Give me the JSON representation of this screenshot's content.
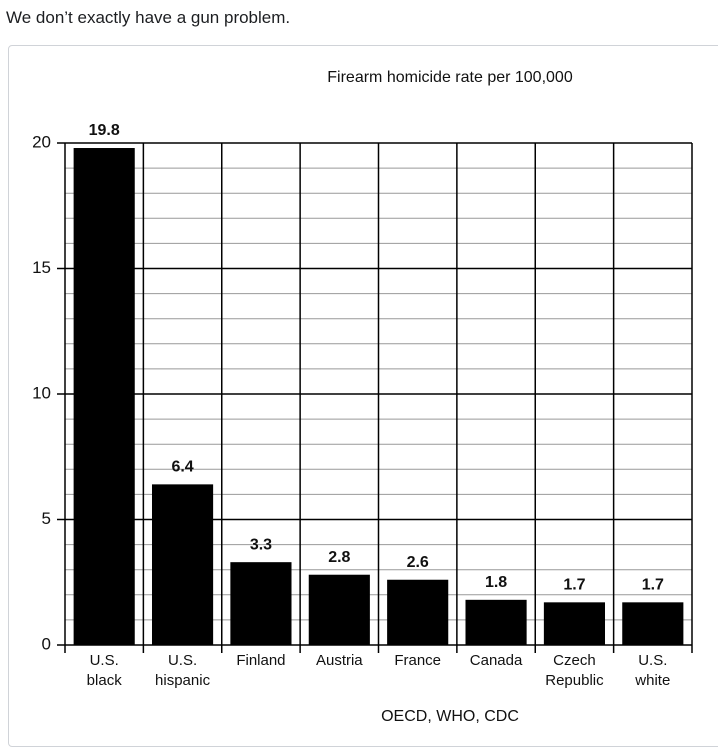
{
  "post": {
    "text": "We don’t exactly have a gun problem."
  },
  "chart_data": {
    "type": "bar",
    "title": "Firearm homicide rate per 100,000",
    "categories": [
      "U.S. black",
      "U.S. hispanic",
      "Finland",
      "Austria",
      "France",
      "Canada",
      "Czech Republic",
      "U.S. white"
    ],
    "values": [
      19.8,
      6.4,
      3.3,
      2.8,
      2.6,
      1.8,
      1.7,
      1.7
    ],
    "color": "#000000",
    "ylim": [
      0,
      20
    ],
    "yticks": [
      0,
      5,
      10,
      15,
      20
    ],
    "grid": true,
    "source": "OECD, WHO, CDC"
  }
}
